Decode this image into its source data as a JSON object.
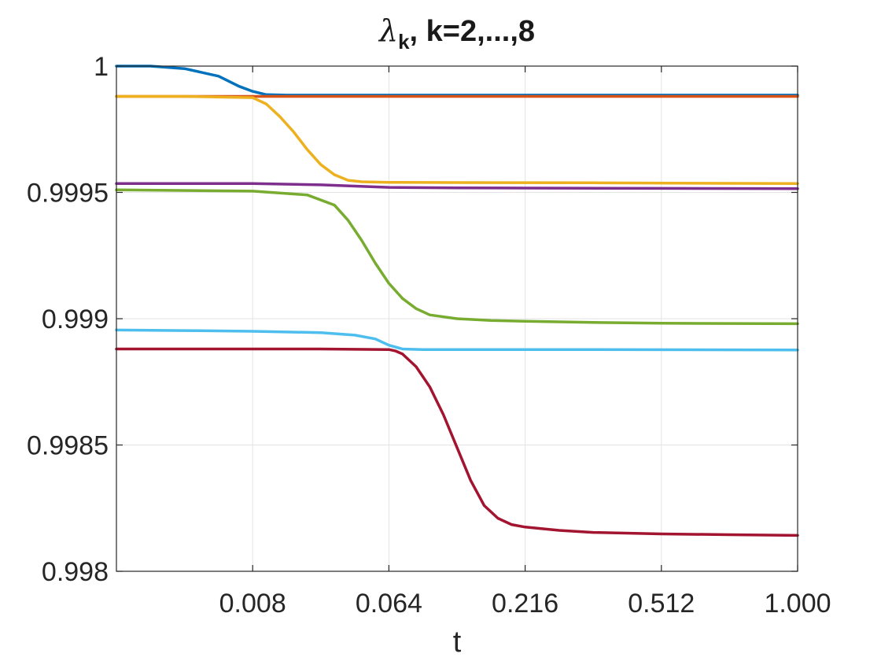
{
  "chart_data": {
    "type": "line",
    "title": {
      "symbol": "λ",
      "subscript": "k",
      "rest": ", k=2,...,8"
    },
    "xlabel": "t",
    "ylabel": "",
    "xlim": [
      0.0,
      1.0
    ],
    "ylim": [
      0.998,
      1.0
    ],
    "grid": true,
    "x_ticks": [
      {
        "value": 0.2,
        "label": "0.008"
      },
      {
        "value": 0.4,
        "label": "0.064"
      },
      {
        "value": 0.6,
        "label": "0.216"
      },
      {
        "value": 0.8,
        "label": "0.512"
      },
      {
        "value": 1.0,
        "label": "1.000"
      }
    ],
    "y_ticks": [
      {
        "value": 0.998,
        "label": "0.998"
      },
      {
        "value": 0.9985,
        "label": "0.9985"
      },
      {
        "value": 0.999,
        "label": "0.999"
      },
      {
        "value": 0.9995,
        "label": "0.9995"
      },
      {
        "value": 1.0,
        "label": "1"
      }
    ],
    "series": [
      {
        "color": "#0072BD",
        "x": [
          0.0,
          0.05,
          0.1,
          0.15,
          0.18,
          0.2,
          0.22,
          0.25,
          0.3,
          0.4,
          0.6,
          0.8,
          1.0
        ],
        "y": [
          1.0,
          1.0,
          0.99999,
          0.99996,
          0.99992,
          0.9999,
          0.999887,
          0.999885,
          0.999885,
          0.999885,
          0.999885,
          0.999885,
          0.999885
        ]
      },
      {
        "color": "#D95319",
        "x": [
          0.0,
          0.2,
          0.4,
          0.6,
          0.8,
          1.0
        ],
        "y": [
          0.99988,
          0.99988,
          0.99988,
          0.99988,
          0.99988,
          0.99988
        ]
      },
      {
        "color": "#EDB120",
        "x": [
          0.0,
          0.1,
          0.2,
          0.22,
          0.24,
          0.26,
          0.28,
          0.3,
          0.32,
          0.34,
          0.36,
          0.4,
          0.5,
          0.7,
          1.0
        ],
        "y": [
          0.99988,
          0.99988,
          0.999875,
          0.99985,
          0.9998,
          0.99974,
          0.99967,
          0.99961,
          0.99957,
          0.999548,
          0.999542,
          0.99954,
          0.999539,
          0.999538,
          0.999535
        ]
      },
      {
        "color": "#7E2F8E",
        "x": [
          0.0,
          0.2,
          0.3,
          0.4,
          0.5,
          0.6,
          0.8,
          1.0
        ],
        "y": [
          0.999535,
          0.999535,
          0.99953,
          0.99952,
          0.999518,
          0.999517,
          0.999516,
          0.999515
        ]
      },
      {
        "color": "#77AC30",
        "x": [
          0.0,
          0.2,
          0.28,
          0.32,
          0.34,
          0.36,
          0.38,
          0.4,
          0.42,
          0.44,
          0.46,
          0.5,
          0.55,
          0.6,
          0.7,
          0.8,
          1.0
        ],
        "y": [
          0.99951,
          0.999505,
          0.99949,
          0.99945,
          0.99939,
          0.99931,
          0.99922,
          0.99914,
          0.99908,
          0.99904,
          0.999015,
          0.999,
          0.998993,
          0.99899,
          0.998985,
          0.998982,
          0.99898
        ]
      },
      {
        "color": "#4DBEEE",
        "x": [
          0.0,
          0.1,
          0.2,
          0.3,
          0.35,
          0.38,
          0.4,
          0.42,
          0.45,
          0.5,
          0.7,
          1.0
        ],
        "y": [
          0.998955,
          0.998953,
          0.99895,
          0.998945,
          0.998935,
          0.99892,
          0.998895,
          0.99888,
          0.998878,
          0.998878,
          0.998878,
          0.998876
        ]
      },
      {
        "color": "#A2142F",
        "x": [
          0.0,
          0.2,
          0.3,
          0.4,
          0.41,
          0.42,
          0.44,
          0.46,
          0.48,
          0.5,
          0.52,
          0.54,
          0.56,
          0.58,
          0.6,
          0.65,
          0.7,
          0.8,
          0.9,
          1.0
        ],
        "y": [
          0.99888,
          0.99888,
          0.99888,
          0.998878,
          0.998872,
          0.99886,
          0.99881,
          0.99873,
          0.99862,
          0.99849,
          0.99836,
          0.99826,
          0.99821,
          0.998185,
          0.998175,
          0.998162,
          0.998154,
          0.998148,
          0.998145,
          0.998142
        ]
      }
    ]
  }
}
